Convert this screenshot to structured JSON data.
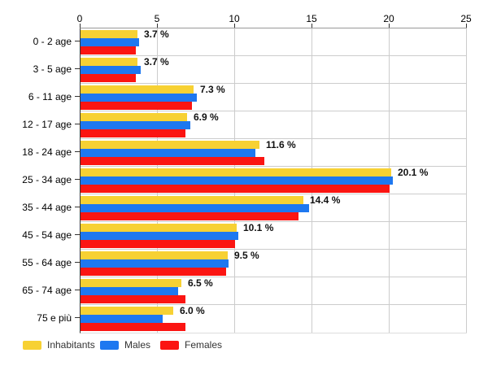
{
  "chart_data": {
    "type": "bar",
    "orientation": "horizontal",
    "x_axis_position": "top",
    "xlim": [
      0,
      25
    ],
    "x_ticks": [
      0,
      5,
      10,
      15,
      20,
      25
    ],
    "grid": true,
    "legend_position": "bottom-left",
    "categories": [
      "0 - 2 age",
      "3 - 5 age",
      "6 - 11 age",
      "12 - 17 age",
      "18 - 24 age",
      "25 - 34 age",
      "35 - 44 age",
      "45 - 54 age",
      "55 - 64 age",
      "65 - 74 age",
      "75 e più"
    ],
    "series": [
      {
        "name": "Inhabitants",
        "color": "#F7D133",
        "values": [
          3.7,
          3.7,
          7.3,
          6.9,
          11.6,
          20.1,
          14.4,
          10.1,
          9.5,
          6.5,
          6.0
        ]
      },
      {
        "name": "Males",
        "color": "#1E78F0",
        "values": [
          3.8,
          3.9,
          7.5,
          7.1,
          11.3,
          20.2,
          14.8,
          10.2,
          9.6,
          6.3,
          5.3
        ]
      },
      {
        "name": "Females",
        "color": "#FB1512",
        "values": [
          3.6,
          3.6,
          7.2,
          6.8,
          11.9,
          20.0,
          14.1,
          10.0,
          9.4,
          6.8,
          6.8
        ]
      }
    ],
    "bar_labels": [
      "3.7 %",
      "3.7 %",
      "7.3 %",
      "6.9 %",
      "11.6 %",
      "20.1 %",
      "14.4 %",
      "10.1 %",
      "9.5 %",
      "6.5 %",
      "6.0 %"
    ]
  },
  "legend": {
    "items": [
      {
        "label": "Inhabitants",
        "color": "#F7D133"
      },
      {
        "label": "Males",
        "color": "#1E78F0"
      },
      {
        "label": "Females",
        "color": "#FB1512"
      }
    ]
  }
}
